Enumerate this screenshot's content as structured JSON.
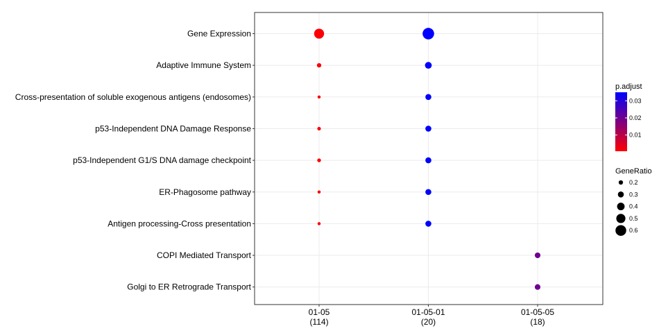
{
  "chart_data": {
    "type": "scatter",
    "title": "",
    "xlabel": "",
    "ylabel": "",
    "grid": true,
    "legend_placement": "right",
    "categories_x": [
      {
        "id": "01-05",
        "label": "01-05",
        "count": "(114)"
      },
      {
        "id": "01-05-01",
        "label": "01-05-01",
        "count": "(20)"
      },
      {
        "id": "01-05-05",
        "label": "01-05-05",
        "count": "(18)"
      }
    ],
    "categories_y": [
      "Gene Expression",
      "Adaptive Immune System",
      "Cross-presentation of soluble exogenous antigens (endosomes)",
      "p53-Independent DNA Damage Response",
      "p53-Independent G1/S DNA damage checkpoint",
      "ER-Phagosome pathway",
      "Antigen processing-Cross presentation",
      "COPI Mediated Transport",
      "Golgi to ER Retrograde Transport"
    ],
    "points": [
      {
        "x": "01-05",
        "y": "Gene Expression",
        "gene_ratio": 0.55,
        "p_adjust": 0.001
      },
      {
        "x": "01-05",
        "y": "Adaptive Immune System",
        "gene_ratio": 0.2,
        "p_adjust": 0.001
      },
      {
        "x": "01-05",
        "y": "Cross-presentation of soluble exogenous antigens (endosomes)",
        "gene_ratio": 0.12,
        "p_adjust": 0.001
      },
      {
        "x": "01-05",
        "y": "p53-Independent DNA Damage Response",
        "gene_ratio": 0.15,
        "p_adjust": 0.001
      },
      {
        "x": "01-05",
        "y": "p53-Independent G1/S DNA damage checkpoint",
        "gene_ratio": 0.16,
        "p_adjust": 0.001
      },
      {
        "x": "01-05",
        "y": "ER-Phagosome pathway",
        "gene_ratio": 0.12,
        "p_adjust": 0.001
      },
      {
        "x": "01-05",
        "y": "Antigen processing-Cross presentation",
        "gene_ratio": 0.12,
        "p_adjust": 0.001
      },
      {
        "x": "01-05-01",
        "y": "Gene Expression",
        "gene_ratio": 0.65,
        "p_adjust": 0.035
      },
      {
        "x": "01-05-01",
        "y": "Adaptive Immune System",
        "gene_ratio": 0.35,
        "p_adjust": 0.035
      },
      {
        "x": "01-05-01",
        "y": "Cross-presentation of soluble exogenous antigens (endosomes)",
        "gene_ratio": 0.3,
        "p_adjust": 0.035
      },
      {
        "x": "01-05-01",
        "y": "p53-Independent DNA Damage Response",
        "gene_ratio": 0.3,
        "p_adjust": 0.035
      },
      {
        "x": "01-05-01",
        "y": "p53-Independent G1/S DNA damage checkpoint",
        "gene_ratio": 0.3,
        "p_adjust": 0.035
      },
      {
        "x": "01-05-01",
        "y": "ER-Phagosome pathway",
        "gene_ratio": 0.3,
        "p_adjust": 0.035
      },
      {
        "x": "01-05-01",
        "y": "Antigen processing-Cross presentation",
        "gene_ratio": 0.3,
        "p_adjust": 0.035
      },
      {
        "x": "01-05-05",
        "y": "COPI Mediated Transport",
        "gene_ratio": 0.28,
        "p_adjust": 0.02
      },
      {
        "x": "01-05-05",
        "y": "Golgi to ER Retrograde Transport",
        "gene_ratio": 0.28,
        "p_adjust": 0.02
      }
    ],
    "color_legend": {
      "title": "p.adjust",
      "range": [
        0.0005,
        0.035
      ],
      "ticks": [
        0.01,
        0.02,
        0.03
      ],
      "tick_labels": [
        "0.01",
        "0.02",
        "0.03"
      ],
      "low_color": "#ff0000",
      "high_color": "#0000ff"
    },
    "size_legend": {
      "title": "GeneRatio",
      "values": [
        0.2,
        0.3,
        0.4,
        0.5,
        0.6
      ],
      "labels": [
        "0.2",
        "0.3",
        "0.4",
        "0.5",
        "0.6"
      ],
      "color": "#000000"
    }
  }
}
